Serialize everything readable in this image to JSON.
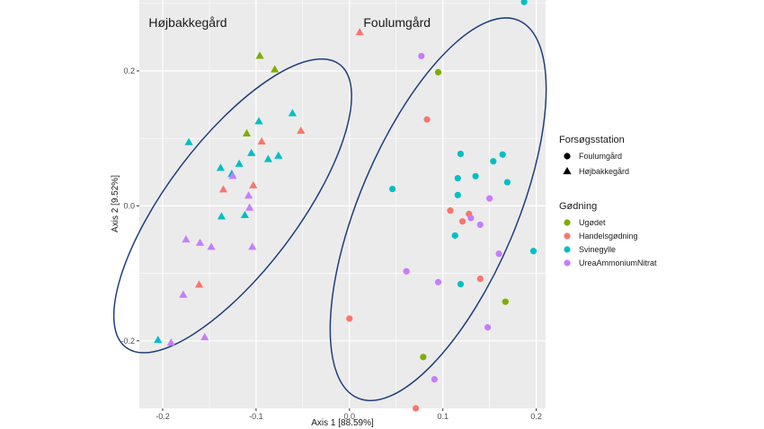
{
  "chart_data": {
    "type": "scatter",
    "xlabel": "Axis 1 [88.59%]",
    "ylabel": "Axis 2 [9.52%]",
    "xlim": [
      -0.225,
      0.21
    ],
    "ylim": [
      -0.3,
      0.305
    ],
    "x_ticks": [
      -0.2,
      -0.1,
      0.0,
      0.1,
      0.2
    ],
    "x_tick_labels": [
      "-0.2",
      "-0.1",
      "0.0",
      "0.1",
      "0.2"
    ],
    "y_ticks": [
      -0.2,
      0.0,
      0.2
    ],
    "y_tick_labels": [
      "-0.2",
      "0.0",
      "0.2"
    ],
    "grid": true,
    "shape_legend": {
      "title": "Forsøgsstation",
      "items": [
        {
          "label": "Foulumgård",
          "shape": "circle"
        },
        {
          "label": "Højbakkegård",
          "shape": "triangle"
        }
      ]
    },
    "color_legend": {
      "title": "Gødning",
      "items": [
        {
          "label": "Ugødet",
          "color": "#7CAE00"
        },
        {
          "label": "Handelsgødning",
          "color": "#F8766D"
        },
        {
          "label": "Svinegylle",
          "color": "#00BFC4"
        },
        {
          "label": "UreaAmmoniumNitrat",
          "color": "#C77CFF"
        }
      ]
    },
    "annotations": [
      {
        "text": "Højbakkegård",
        "x": -0.215,
        "y": 0.265
      },
      {
        "text": "Foulumgård",
        "x": 0.015,
        "y": 0.265
      }
    ],
    "ellipses": [
      {
        "name": "Højbakkegård",
        "center": [
          -0.125,
          0.0
        ],
        "rx": 0.19,
        "ry": 0.07,
        "angle_deg": -53,
        "color": "#1F3E7A"
      },
      {
        "name": "Foulumgård",
        "center": [
          0.095,
          -0.005
        ],
        "rx": 0.22,
        "ry": 0.084,
        "angle_deg": -67,
        "color": "#1F3E7A"
      }
    ],
    "series": [
      {
        "station": "Højbakkegård",
        "fertilizer": "Ugødet",
        "shape": "triangle",
        "color": "#7CAE00",
        "points": [
          [
            -0.096,
            0.222
          ],
          [
            -0.08,
            0.202
          ],
          [
            -0.11,
            0.107
          ]
        ]
      },
      {
        "station": "Højbakkegård",
        "fertilizer": "Handelsgødning",
        "shape": "triangle",
        "color": "#F8766D",
        "points": [
          [
            0.011,
            0.257
          ],
          [
            -0.052,
            0.111
          ],
          [
            -0.094,
            0.095
          ],
          [
            -0.103,
            0.03
          ],
          [
            -0.135,
            0.024
          ],
          [
            -0.161,
            -0.117
          ]
        ]
      },
      {
        "station": "Højbakkegård",
        "fertilizer": "Svinegylle",
        "shape": "triangle",
        "color": "#00BFC4",
        "points": [
          [
            -0.172,
            0.094
          ],
          [
            -0.061,
            0.137
          ],
          [
            -0.097,
            0.125
          ],
          [
            -0.105,
            0.078
          ],
          [
            -0.076,
            0.074
          ],
          [
            -0.087,
            0.069
          ],
          [
            -0.118,
            0.062
          ],
          [
            -0.138,
            0.056
          ],
          [
            -0.126,
            0.047
          ],
          [
            -0.112,
            -0.014
          ],
          [
            -0.137,
            -0.016
          ],
          [
            -0.205,
            -0.199
          ]
        ]
      },
      {
        "station": "Højbakkegård",
        "fertilizer": "UreaAmmoniumNitrat",
        "shape": "triangle",
        "color": "#C77CFF",
        "points": [
          [
            -0.125,
            0.044
          ],
          [
            -0.108,
            0.015
          ],
          [
            -0.107,
            -0.003
          ],
          [
            -0.175,
            -0.05
          ],
          [
            -0.16,
            -0.055
          ],
          [
            -0.148,
            -0.061
          ],
          [
            -0.104,
            -0.061
          ],
          [
            -0.178,
            -0.132
          ],
          [
            -0.155,
            -0.195
          ],
          [
            -0.191,
            -0.203
          ]
        ]
      },
      {
        "station": "Foulumgård",
        "fertilizer": "Ugødet",
        "shape": "circle",
        "color": "#7CAE00",
        "points": [
          [
            0.095,
            0.198
          ],
          [
            0.167,
            -0.142
          ],
          [
            0.079,
            -0.224
          ]
        ]
      },
      {
        "station": "Foulumgård",
        "fertilizer": "Handelsgødning",
        "shape": "circle",
        "color": "#F8766D",
        "points": [
          [
            0.083,
            0.128
          ],
          [
            0.108,
            -0.007
          ],
          [
            0.121,
            -0.023
          ],
          [
            0.128,
            -0.012
          ],
          [
            0.14,
            -0.108
          ],
          [
            0.0,
            -0.167
          ],
          [
            0.071,
            -0.3
          ]
        ]
      },
      {
        "station": "Foulumgård",
        "fertilizer": "Svinegylle",
        "shape": "circle",
        "color": "#00BFC4",
        "points": [
          [
            0.187,
            0.302
          ],
          [
            0.119,
            0.077
          ],
          [
            0.164,
            0.076
          ],
          [
            0.154,
            0.066
          ],
          [
            0.116,
            0.041
          ],
          [
            0.135,
            0.044
          ],
          [
            0.169,
            0.035
          ],
          [
            0.046,
            0.025
          ],
          [
            0.116,
            0.016
          ],
          [
            0.113,
            -0.044
          ],
          [
            0.197,
            -0.067
          ],
          [
            0.119,
            -0.116
          ]
        ]
      },
      {
        "station": "Foulumgård",
        "fertilizer": "UreaAmmoniumNitrat",
        "shape": "circle",
        "color": "#C77CFF",
        "points": [
          [
            0.077,
            0.222
          ],
          [
            0.15,
            0.011
          ],
          [
            0.13,
            -0.018
          ],
          [
            0.14,
            -0.028
          ],
          [
            0.16,
            -0.071
          ],
          [
            0.061,
            -0.097
          ],
          [
            0.095,
            -0.113
          ],
          [
            0.148,
            -0.18
          ],
          [
            0.091,
            -0.257
          ]
        ]
      }
    ]
  }
}
